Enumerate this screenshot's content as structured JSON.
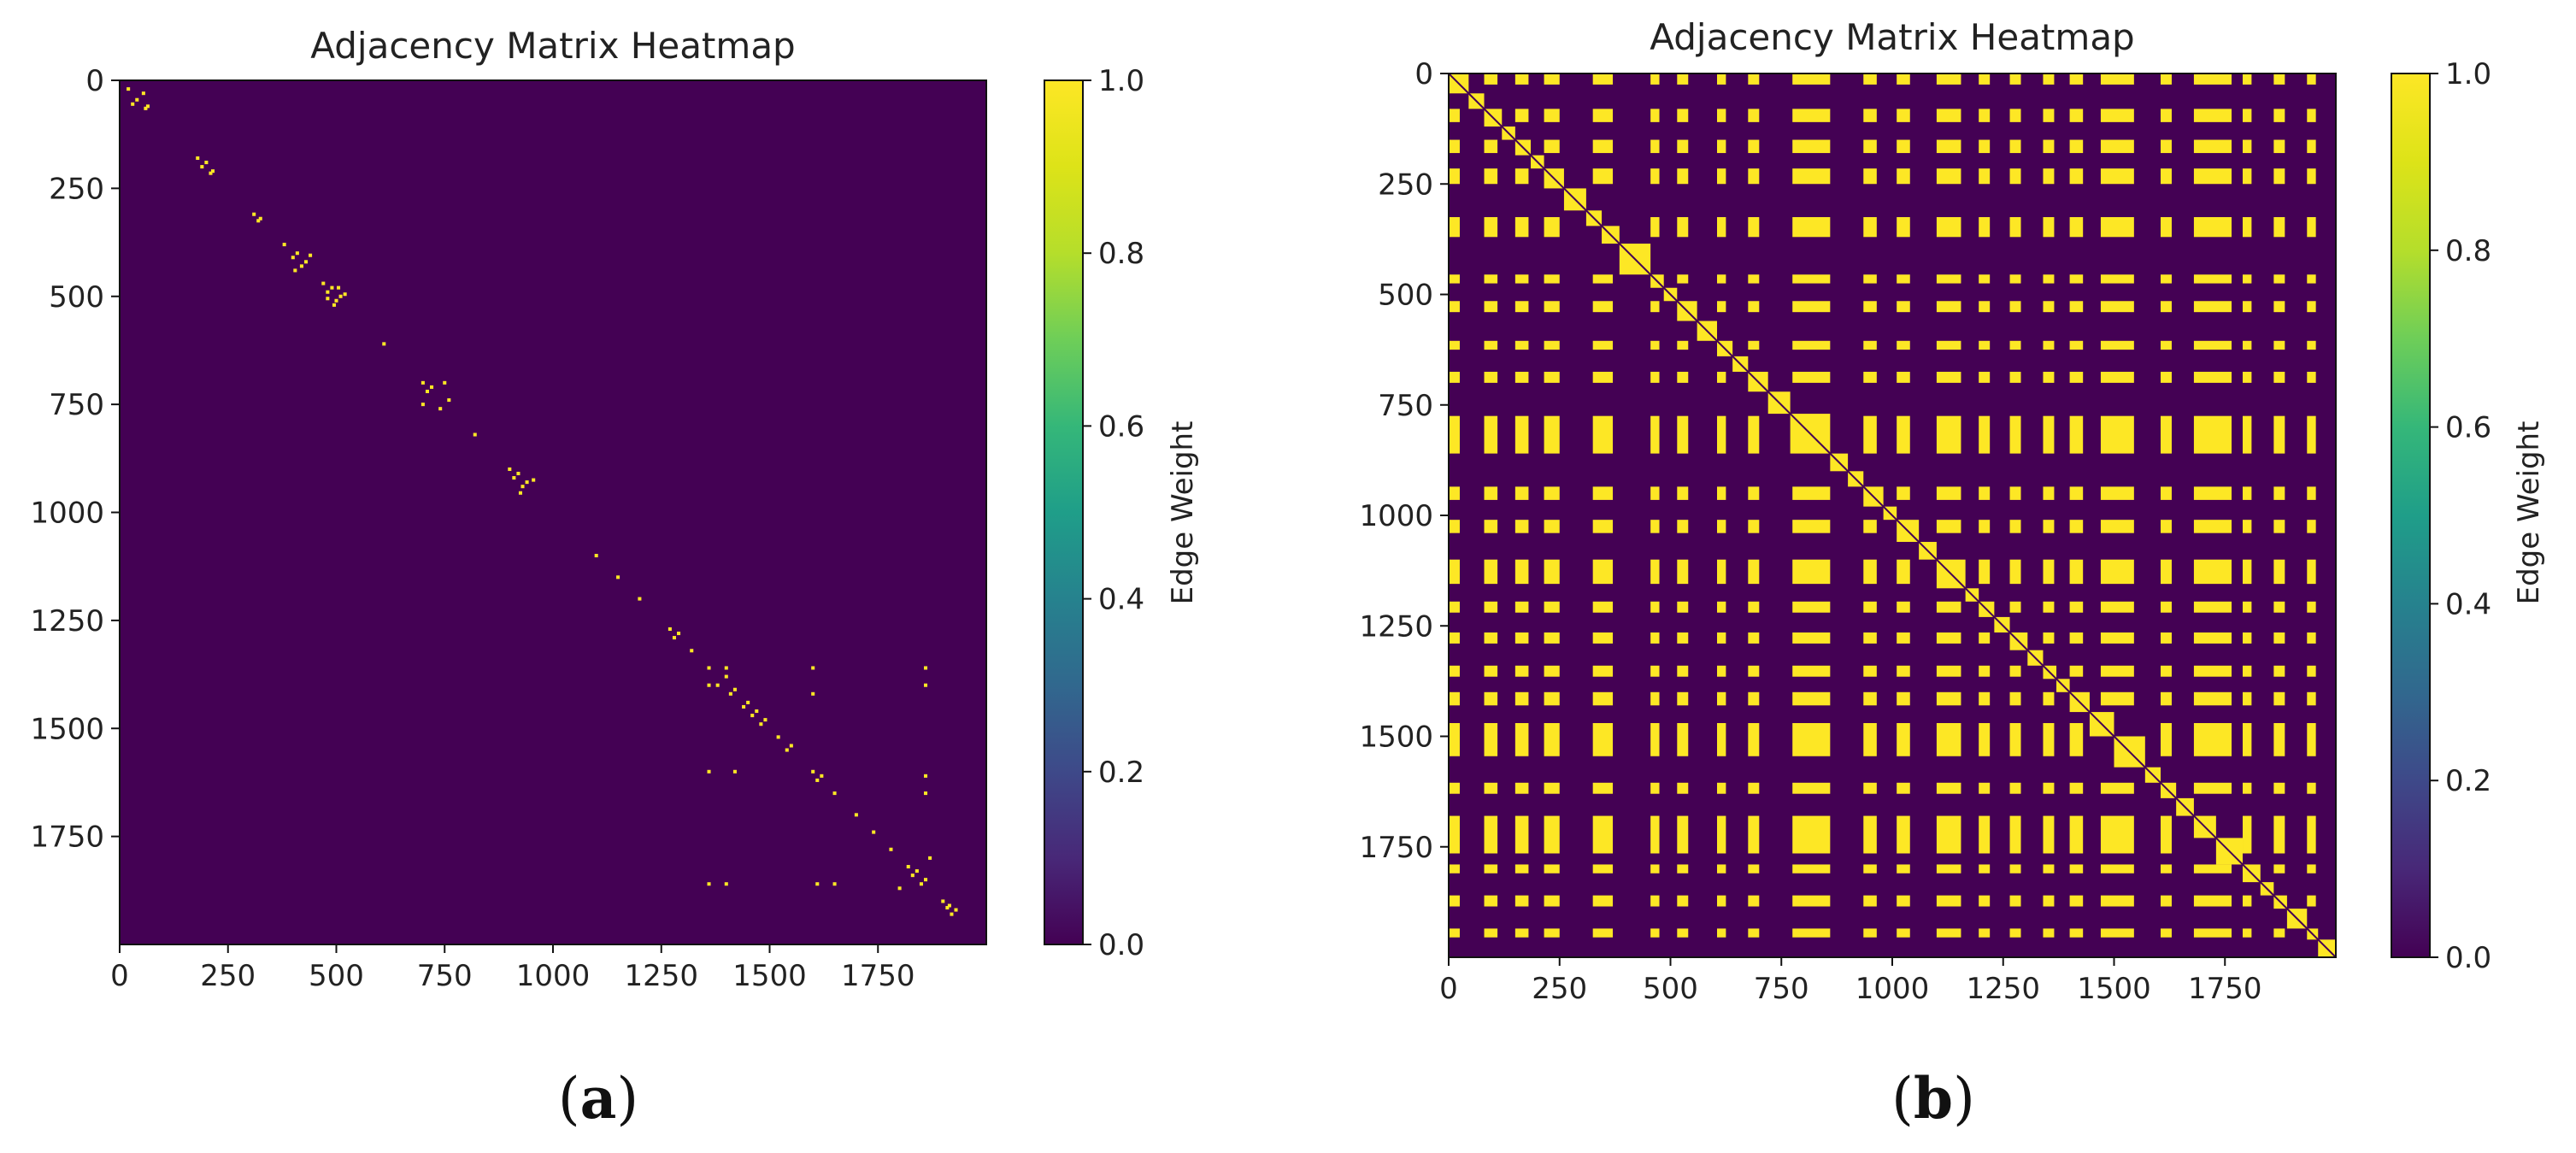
{
  "chart_data": [
    {
      "type": "heatmap",
      "panel_label": "(a)",
      "title": "Adjacency Matrix Heatmap",
      "matrix_size": 2000,
      "x_ticks": [
        "0",
        "250",
        "500",
        "750",
        "1000",
        "1250",
        "1500",
        "1750"
      ],
      "y_ticks": [
        "0",
        "250",
        "500",
        "750",
        "1000",
        "1250",
        "1500",
        "1750"
      ],
      "x_tick_values": [
        0,
        250,
        500,
        750,
        1000,
        1250,
        1500,
        1750
      ],
      "y_tick_values": [
        0,
        250,
        500,
        750,
        1000,
        1250,
        1500,
        1750
      ],
      "xlim": [
        0,
        2000
      ],
      "ylim": [
        2000,
        0
      ],
      "colorbar": {
        "label": "Edge Weight",
        "ticks": [
          "0.0",
          "0.2",
          "0.4",
          "0.6",
          "0.8",
          "1.0"
        ],
        "tick_values": [
          0.0,
          0.2,
          0.4,
          0.6,
          0.8,
          1.0
        ],
        "range": [
          0.0,
          1.0
        ],
        "colormap": "viridis"
      },
      "background_value": 0.0,
      "edge_value": 1.0,
      "nonzero_entries_approx": [
        [
          20,
          20
        ],
        [
          30,
          55
        ],
        [
          55,
          30
        ],
        [
          60,
          65
        ],
        [
          65,
          60
        ],
        [
          45,
          40
        ],
        [
          180,
          180
        ],
        [
          190,
          200
        ],
        [
          200,
          190
        ],
        [
          210,
          215
        ],
        [
          215,
          210
        ],
        [
          310,
          310
        ],
        [
          320,
          325
        ],
        [
          325,
          320
        ],
        [
          380,
          380
        ],
        [
          400,
          410
        ],
        [
          410,
          400
        ],
        [
          420,
          430
        ],
        [
          430,
          420
        ],
        [
          405,
          440
        ],
        [
          440,
          405
        ],
        [
          470,
          470
        ],
        [
          480,
          490
        ],
        [
          490,
          480
        ],
        [
          500,
          510
        ],
        [
          510,
          500
        ],
        [
          495,
          520
        ],
        [
          520,
          495
        ],
        [
          480,
          505
        ],
        [
          505,
          480
        ],
        [
          610,
          610
        ],
        [
          700,
          700
        ],
        [
          710,
          720
        ],
        [
          720,
          710
        ],
        [
          740,
          760
        ],
        [
          760,
          740
        ],
        [
          750,
          700
        ],
        [
          700,
          750
        ],
        [
          820,
          820
        ],
        [
          900,
          900
        ],
        [
          910,
          920
        ],
        [
          920,
          910
        ],
        [
          930,
          940
        ],
        [
          940,
          930
        ],
        [
          925,
          955
        ],
        [
          955,
          925
        ],
        [
          1100,
          1100
        ],
        [
          1150,
          1150
        ],
        [
          1200,
          1200
        ],
        [
          1270,
          1270
        ],
        [
          1280,
          1290
        ],
        [
          1290,
          1280
        ],
        [
          1320,
          1320
        ],
        [
          1360,
          1360
        ],
        [
          1380,
          1400
        ],
        [
          1400,
          1380
        ],
        [
          1410,
          1420
        ],
        [
          1420,
          1410
        ],
        [
          1440,
          1450
        ],
        [
          1450,
          1440
        ],
        [
          1460,
          1470
        ],
        [
          1470,
          1460
        ],
        [
          1480,
          1490
        ],
        [
          1490,
          1480
        ],
        [
          1400,
          1360
        ],
        [
          1360,
          1400
        ],
        [
          1520,
          1520
        ],
        [
          1540,
          1550
        ],
        [
          1550,
          1540
        ],
        [
          1600,
          1600
        ],
        [
          1610,
          1620
        ],
        [
          1620,
          1610
        ],
        [
          1600,
          1360
        ],
        [
          1360,
          1600
        ],
        [
          1600,
          1420
        ],
        [
          1420,
          1600
        ],
        [
          1650,
          1650
        ],
        [
          1700,
          1700
        ],
        [
          1740,
          1740
        ],
        [
          1780,
          1780
        ],
        [
          1820,
          1820
        ],
        [
          1830,
          1840
        ],
        [
          1840,
          1830
        ],
        [
          1850,
          1860
        ],
        [
          1860,
          1850
        ],
        [
          1800,
          1870
        ],
        [
          1870,
          1800
        ],
        [
          1860,
          1360
        ],
        [
          1360,
          1860
        ],
        [
          1860,
          1400
        ],
        [
          1400,
          1860
        ],
        [
          1860,
          1650
        ],
        [
          1650,
          1860
        ],
        [
          1860,
          1610
        ],
        [
          1610,
          1860
        ],
        [
          1900,
          1900
        ],
        [
          1920,
          1930
        ],
        [
          1930,
          1920
        ],
        [
          1910,
          1915
        ],
        [
          1915,
          1910
        ]
      ]
    },
    {
      "type": "heatmap",
      "panel_label": "(b)",
      "title": "Adjacency Matrix Heatmap",
      "matrix_size": 2000,
      "x_ticks": [
        "0",
        "250",
        "500",
        "750",
        "1000",
        "1250",
        "1500",
        "1750"
      ],
      "y_ticks": [
        "0",
        "250",
        "500",
        "750",
        "1000",
        "1250",
        "1500",
        "1750"
      ],
      "x_tick_values": [
        0,
        250,
        500,
        750,
        1000,
        1250,
        1500,
        1750
      ],
      "y_tick_values": [
        0,
        250,
        500,
        750,
        1000,
        1250,
        1500,
        1750
      ],
      "xlim": [
        0,
        2000
      ],
      "ylim": [
        2000,
        0
      ],
      "colorbar": {
        "label": "Edge Weight",
        "ticks": [
          "0.0",
          "0.2",
          "0.4",
          "0.6",
          "0.8",
          "1.0"
        ],
        "tick_values": [
          0.0,
          0.2,
          0.4,
          0.6,
          0.8,
          1.0
        ],
        "range": [
          0.0,
          1.0
        ],
        "colormap": "viridis"
      },
      "background_value": 0.0,
      "edge_value": 1.0,
      "description_of_structure": "Nodes are grouped into clusters along the diagonal; a subset of cluster intervals are mutually connected producing a grid of blocks, while diagonal blocks show cluster self-connections",
      "diagonal_clusters": [
        [
          0,
          45
        ],
        [
          45,
          80
        ],
        [
          80,
          120
        ],
        [
          120,
          150
        ],
        [
          150,
          185
        ],
        [
          185,
          215
        ],
        [
          215,
          260
        ],
        [
          260,
          310
        ],
        [
          310,
          345
        ],
        [
          345,
          385
        ],
        [
          385,
          455
        ],
        [
          455,
          485
        ],
        [
          485,
          515
        ],
        [
          515,
          560
        ],
        [
          560,
          605
        ],
        [
          605,
          640
        ],
        [
          640,
          675
        ],
        [
          675,
          720
        ],
        [
          720,
          770
        ],
        [
          770,
          860
        ],
        [
          860,
          900
        ],
        [
          900,
          935
        ],
        [
          935,
          980
        ],
        [
          980,
          1010
        ],
        [
          1010,
          1060
        ],
        [
          1060,
          1100
        ],
        [
          1100,
          1165
        ],
        [
          1165,
          1195
        ],
        [
          1195,
          1230
        ],
        [
          1230,
          1265
        ],
        [
          1265,
          1305
        ],
        [
          1305,
          1340
        ],
        [
          1340,
          1370
        ],
        [
          1370,
          1400
        ],
        [
          1400,
          1445
        ],
        [
          1445,
          1500
        ],
        [
          1500,
          1570
        ],
        [
          1570,
          1605
        ],
        [
          1605,
          1640
        ],
        [
          1640,
          1680
        ],
        [
          1680,
          1730
        ],
        [
          1730,
          1790
        ],
        [
          1790,
          1830
        ],
        [
          1830,
          1860
        ],
        [
          1860,
          1890
        ],
        [
          1890,
          1935
        ],
        [
          1935,
          1960
        ],
        [
          1960,
          2000
        ]
      ],
      "connected_clusters": [
        [
          0,
          25
        ],
        [
          80,
          110
        ],
        [
          150,
          180
        ],
        [
          215,
          250
        ],
        [
          325,
          370
        ],
        [
          455,
          475
        ],
        [
          515,
          540
        ],
        [
          605,
          625
        ],
        [
          675,
          700
        ],
        [
          775,
          860
        ],
        [
          935,
          965
        ],
        [
          1010,
          1040
        ],
        [
          1100,
          1155
        ],
        [
          1195,
          1220
        ],
        [
          1265,
          1290
        ],
        [
          1340,
          1365
        ],
        [
          1400,
          1430
        ],
        [
          1470,
          1545
        ],
        [
          1605,
          1630
        ],
        [
          1680,
          1765
        ],
        [
          1790,
          1810
        ],
        [
          1860,
          1885
        ],
        [
          1935,
          1955
        ]
      ]
    }
  ]
}
